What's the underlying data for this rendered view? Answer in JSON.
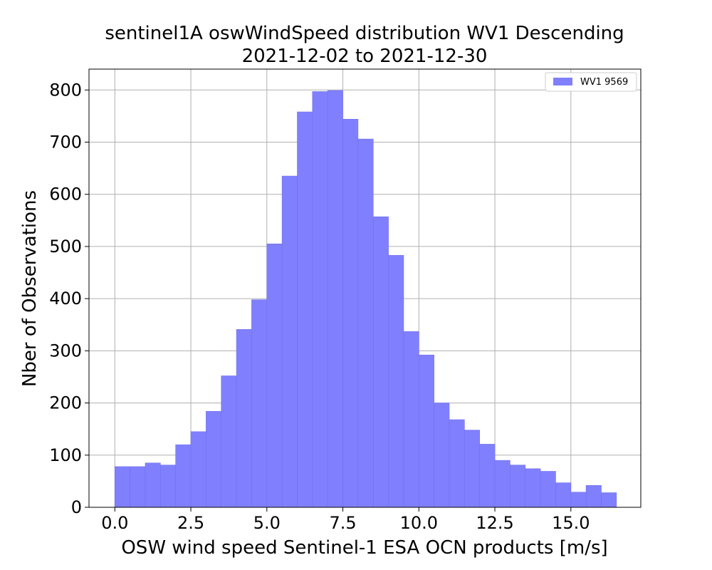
{
  "chart_data": {
    "type": "bar",
    "title_line1": "sentinel1A oswWindSpeed distribution WV1 Descending",
    "title_line2": "2021-12-02 to 2021-12-30",
    "xlabel": "OSW wind speed Sentinel-1 ESA OCN products [m/s]",
    "ylabel": "Nber of Observations",
    "xlim": [
      -0.85,
      17.3
    ],
    "ylim": [
      0,
      840
    ],
    "xticks": [
      0.0,
      2.5,
      5.0,
      7.5,
      10.0,
      12.5,
      15.0
    ],
    "xtick_labels": [
      "0.0",
      "2.5",
      "5.0",
      "7.5",
      "10.0",
      "12.5",
      "15.0"
    ],
    "yticks": [
      0,
      100,
      200,
      300,
      400,
      500,
      600,
      700,
      800
    ],
    "ytick_labels": [
      "0",
      "100",
      "200",
      "300",
      "400",
      "500",
      "600",
      "700",
      "800"
    ],
    "grid": true,
    "legend_position": "top-right",
    "bin_width": 0.5,
    "bin_starts": [
      0.0,
      0.5,
      1.0,
      1.5,
      2.0,
      2.5,
      3.0,
      3.5,
      4.0,
      4.5,
      5.0,
      5.5,
      6.0,
      6.5,
      7.0,
      7.5,
      8.0,
      8.5,
      9.0,
      9.5,
      10.0,
      10.5,
      11.0,
      11.5,
      12.0,
      12.5,
      13.0,
      13.5,
      14.0,
      14.5,
      15.0,
      15.5,
      16.0
    ],
    "series": [
      {
        "name": "WV1 9569",
        "color": "#8080ff",
        "values": [
          78,
          78,
          85,
          81,
          120,
          145,
          184,
          252,
          341,
          398,
          505,
          635,
          758,
          797,
          799,
          744,
          706,
          557,
          483,
          337,
          292,
          200,
          168,
          148,
          121,
          90,
          81,
          74,
          69,
          47,
          29,
          42,
          28
        ]
      }
    ]
  }
}
